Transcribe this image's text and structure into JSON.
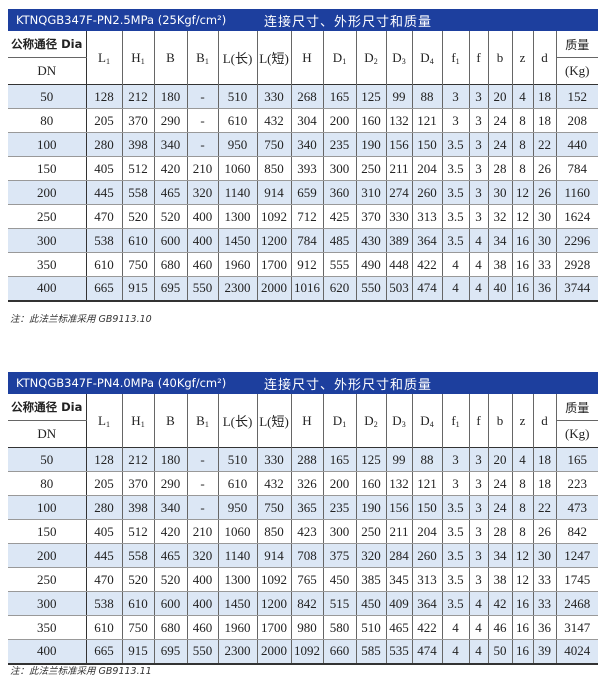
{
  "tables": [
    {
      "model": "KTNQGB347F-PN2.5MPa (25Kgf/cm²)",
      "caption": "连接尺寸、外形尺寸和质量",
      "dn_header_top": "公称通径 Dia",
      "dn_header_bottom": "DN",
      "mass_header_top": "质量",
      "mass_header_bottom": "(Kg)",
      "columns": [
        {
          "main": "L",
          "sub": "1"
        },
        {
          "main": "H",
          "sub": "1"
        },
        {
          "main": "B",
          "sub": ""
        },
        {
          "main": "B",
          "sub": "1"
        },
        {
          "main": "L(长)",
          "sub": ""
        },
        {
          "main": "L(短)",
          "sub": ""
        },
        {
          "main": "H",
          "sub": ""
        },
        {
          "main": "D",
          "sub": "1"
        },
        {
          "main": "D",
          "sub": "2"
        },
        {
          "main": "D",
          "sub": "3"
        },
        {
          "main": "D",
          "sub": "4"
        },
        {
          "main": "f",
          "sub": "1"
        },
        {
          "main": "f",
          "sub": ""
        },
        {
          "main": "b",
          "sub": ""
        },
        {
          "main": "z",
          "sub": ""
        },
        {
          "main": "d",
          "sub": ""
        }
      ],
      "rows": [
        [
          "50",
          "128",
          "212",
          "180",
          "-",
          "510",
          "330",
          "268",
          "165",
          "125",
          "99",
          "88",
          "3",
          "3",
          "20",
          "4",
          "18",
          "152"
        ],
        [
          "80",
          "205",
          "370",
          "290",
          "-",
          "610",
          "432",
          "304",
          "200",
          "160",
          "132",
          "121",
          "3",
          "3",
          "24",
          "8",
          "18",
          "208"
        ],
        [
          "100",
          "280",
          "398",
          "340",
          "-",
          "950",
          "750",
          "340",
          "235",
          "190",
          "156",
          "150",
          "3.5",
          "3",
          "24",
          "8",
          "22",
          "440"
        ],
        [
          "150",
          "405",
          "512",
          "420",
          "210",
          "1060",
          "850",
          "393",
          "300",
          "250",
          "211",
          "204",
          "3.5",
          "3",
          "28",
          "8",
          "26",
          "784"
        ],
        [
          "200",
          "445",
          "558",
          "465",
          "320",
          "1140",
          "914",
          "659",
          "360",
          "310",
          "274",
          "260",
          "3.5",
          "3",
          "30",
          "12",
          "26",
          "1160"
        ],
        [
          "250",
          "470",
          "520",
          "520",
          "400",
          "1300",
          "1092",
          "712",
          "425",
          "370",
          "330",
          "313",
          "3.5",
          "3",
          "32",
          "12",
          "30",
          "1624"
        ],
        [
          "300",
          "538",
          "610",
          "600",
          "400",
          "1450",
          "1200",
          "784",
          "485",
          "430",
          "389",
          "364",
          "3.5",
          "4",
          "34",
          "16",
          "30",
          "2296"
        ],
        [
          "350",
          "610",
          "750",
          "680",
          "460",
          "1960",
          "1700",
          "912",
          "555",
          "490",
          "448",
          "422",
          "4",
          "4",
          "38",
          "16",
          "33",
          "2928"
        ],
        [
          "400",
          "665",
          "915",
          "695",
          "550",
          "2300",
          "2000",
          "1016",
          "620",
          "550",
          "503",
          "474",
          "4",
          "4",
          "40",
          "16",
          "36",
          "3744"
        ]
      ],
      "note": "注：此法兰标准采用 GB9113.10"
    },
    {
      "model": "KTNQGB347F-PN4.0MPa (40Kgf/cm²)",
      "caption": "连接尺寸、外形尺寸和质量",
      "dn_header_top": "公称通径 Dia",
      "dn_header_bottom": "DN",
      "mass_header_top": "质量",
      "mass_header_bottom": "(Kg)",
      "columns": [
        {
          "main": "L",
          "sub": "1"
        },
        {
          "main": "H",
          "sub": "1"
        },
        {
          "main": "B",
          "sub": ""
        },
        {
          "main": "B",
          "sub": "1"
        },
        {
          "main": "L(长)",
          "sub": ""
        },
        {
          "main": "L(短)",
          "sub": ""
        },
        {
          "main": "H",
          "sub": ""
        },
        {
          "main": "D",
          "sub": "1"
        },
        {
          "main": "D",
          "sub": "2"
        },
        {
          "main": "D",
          "sub": "3"
        },
        {
          "main": "D",
          "sub": "4"
        },
        {
          "main": "f",
          "sub": "1"
        },
        {
          "main": "f",
          "sub": ""
        },
        {
          "main": "b",
          "sub": ""
        },
        {
          "main": "z",
          "sub": ""
        },
        {
          "main": "d",
          "sub": ""
        }
      ],
      "rows": [
        [
          "50",
          "128",
          "212",
          "180",
          "-",
          "510",
          "330",
          "288",
          "165",
          "125",
          "99",
          "88",
          "3",
          "3",
          "20",
          "4",
          "18",
          "165"
        ],
        [
          "80",
          "205",
          "370",
          "290",
          "-",
          "610",
          "432",
          "326",
          "200",
          "160",
          "132",
          "121",
          "3",
          "3",
          "24",
          "8",
          "18",
          "223"
        ],
        [
          "100",
          "280",
          "398",
          "340",
          "-",
          "950",
          "750",
          "365",
          "235",
          "190",
          "156",
          "150",
          "3.5",
          "3",
          "24",
          "8",
          "22",
          "473"
        ],
        [
          "150",
          "405",
          "512",
          "420",
          "210",
          "1060",
          "850",
          "423",
          "300",
          "250",
          "211",
          "204",
          "3.5",
          "3",
          "28",
          "8",
          "26",
          "842"
        ],
        [
          "200",
          "445",
          "558",
          "465",
          "320",
          "1140",
          "914",
          "708",
          "375",
          "320",
          "284",
          "260",
          "3.5",
          "3",
          "34",
          "12",
          "30",
          "1247"
        ],
        [
          "250",
          "470",
          "520",
          "520",
          "400",
          "1300",
          "1092",
          "765",
          "450",
          "385",
          "345",
          "313",
          "3.5",
          "3",
          "38",
          "12",
          "33",
          "1745"
        ],
        [
          "300",
          "538",
          "610",
          "600",
          "400",
          "1450",
          "1200",
          "842",
          "515",
          "450",
          "409",
          "364",
          "3.5",
          "4",
          "42",
          "16",
          "33",
          "2468"
        ],
        [
          "350",
          "610",
          "750",
          "680",
          "460",
          "1960",
          "1700",
          "980",
          "580",
          "510",
          "465",
          "422",
          "4",
          "4",
          "46",
          "16",
          "36",
          "3147"
        ],
        [
          "400",
          "665",
          "915",
          "695",
          "550",
          "2300",
          "2000",
          "1092",
          "660",
          "585",
          "535",
          "474",
          "4",
          "4",
          "50",
          "16",
          "39",
          "4024"
        ]
      ],
      "note": "注：此法兰标准采用 GB9113.11"
    }
  ],
  "colors": {
    "title_bar": "#1d3f9e",
    "row_highlight": "#dce7f5"
  }
}
